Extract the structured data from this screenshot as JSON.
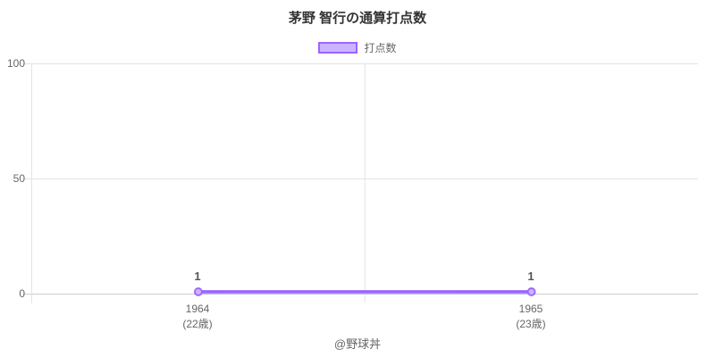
{
  "chart_data": {
    "type": "line",
    "title": "茅野 智行の通算打点数",
    "legend": [
      {
        "label": "打点数",
        "color": "#9966ff",
        "fill": "#ccb3ff"
      }
    ],
    "legend_position": "top",
    "categories": [
      "1964",
      "1965"
    ],
    "category_notes": [
      "(22歳)",
      "(23歳)"
    ],
    "values": [
      1,
      1
    ],
    "point_labels": [
      "1",
      "1"
    ],
    "ylim": [
      0,
      100
    ],
    "yticks": [
      0,
      50,
      100
    ],
    "grid": true,
    "colors": {
      "line": "#9966ff",
      "point_fill": "#ccb3ff",
      "area_fill": "rgba(153,102,255,0.35)",
      "grid": "#e3e3e3",
      "axis": "#cccccc",
      "title_text": "#333333",
      "tick_text": "#666666",
      "point_label_text": "#555555"
    }
  },
  "footer": {
    "text": "@野球丼"
  }
}
